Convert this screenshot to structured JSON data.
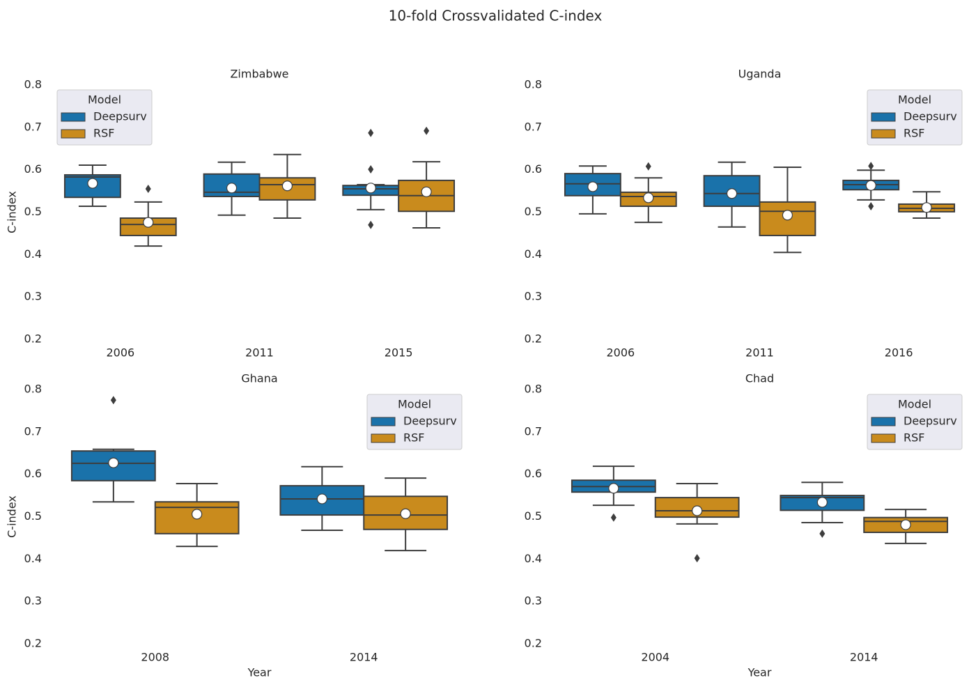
{
  "title": "10-fold Crossvalidated C-index",
  "chart_data": [
    {
      "type": "box",
      "title": "Zimbabwe",
      "ylabel": "C-index",
      "categories": [
        "2006",
        "2011",
        "2015"
      ],
      "ylim": [
        0.2,
        0.8
      ],
      "yticks": [
        0.2,
        0.3,
        0.4,
        0.5,
        0.6,
        0.7,
        0.8
      ],
      "legend": {
        "title": "Model",
        "position": "upper left"
      },
      "series": [
        {
          "name": "Deepsurv",
          "color": "#1a72aa",
          "boxes": [
            {
              "low": 0.514,
              "q1": 0.535,
              "median": 0.583,
              "q3": 0.588,
              "high": 0.611,
              "mean": 0.568,
              "outliers": []
            },
            {
              "low": 0.493,
              "q1": 0.537,
              "median": 0.547,
              "q3": 0.59,
              "high": 0.618,
              "mean": 0.557,
              "outliers": []
            },
            {
              "low": 0.506,
              "q1": 0.54,
              "median": 0.555,
              "q3": 0.563,
              "high": 0.565,
              "mean": 0.557,
              "outliers": [
                0.687,
                0.601,
                0.47
              ]
            }
          ]
        },
        {
          "name": "RSF",
          "color": "#c98b1d",
          "boxes": [
            {
              "low": 0.42,
              "q1": 0.445,
              "median": 0.471,
              "q3": 0.486,
              "high": 0.524,
              "mean": 0.476,
              "outliers": [
                0.555
              ]
            },
            {
              "low": 0.486,
              "q1": 0.529,
              "median": 0.565,
              "q3": 0.581,
              "high": 0.636,
              "mean": 0.562,
              "outliers": []
            },
            {
              "low": 0.463,
              "q1": 0.502,
              "median": 0.539,
              "q3": 0.575,
              "high": 0.619,
              "mean": 0.548,
              "outliers": [
                0.692
              ]
            }
          ]
        }
      ]
    },
    {
      "type": "box",
      "title": "Uganda",
      "categories": [
        "2006",
        "2011",
        "2016"
      ],
      "ylim": [
        0.2,
        0.8
      ],
      "yticks": [
        0.2,
        0.3,
        0.4,
        0.5,
        0.6,
        0.7,
        0.8
      ],
      "legend": {
        "title": "Model",
        "position": "upper right"
      },
      "series": [
        {
          "name": "Deepsurv",
          "color": "#1a72aa",
          "boxes": [
            {
              "low": 0.496,
              "q1": 0.539,
              "median": 0.567,
              "q3": 0.591,
              "high": 0.609,
              "mean": 0.56,
              "outliers": []
            },
            {
              "low": 0.465,
              "q1": 0.514,
              "median": 0.544,
              "q3": 0.586,
              "high": 0.618,
              "mean": 0.544,
              "outliers": []
            },
            {
              "low": 0.529,
              "q1": 0.553,
              "median": 0.565,
              "q3": 0.575,
              "high": 0.599,
              "mean": 0.563,
              "outliers": [
                0.609,
                0.514
              ]
            }
          ]
        },
        {
          "name": "RSF",
          "color": "#c98b1d",
          "boxes": [
            {
              "low": 0.476,
              "q1": 0.514,
              "median": 0.537,
              "q3": 0.547,
              "high": 0.581,
              "mean": 0.534,
              "outliers": [
                0.608
              ]
            },
            {
              "low": 0.405,
              "q1": 0.445,
              "median": 0.502,
              "q3": 0.524,
              "high": 0.606,
              "mean": 0.493,
              "outliers": []
            },
            {
              "low": 0.486,
              "q1": 0.501,
              "median": 0.509,
              "q3": 0.519,
              "high": 0.548,
              "mean": 0.511,
              "outliers": []
            }
          ]
        }
      ]
    },
    {
      "type": "box",
      "title": "Ghana",
      "xlabel": "Year",
      "ylabel": "C-index",
      "categories": [
        "2008",
        "2014"
      ],
      "ylim": [
        0.2,
        0.8
      ],
      "yticks": [
        0.2,
        0.3,
        0.4,
        0.5,
        0.6,
        0.7,
        0.8
      ],
      "legend": {
        "title": "Model",
        "position": "upper right"
      },
      "series": [
        {
          "name": "Deepsurv",
          "color": "#1a72aa",
          "boxes": [
            {
              "low": 0.535,
              "q1": 0.585,
              "median": 0.626,
              "q3": 0.655,
              "high": 0.659,
              "mean": 0.627,
              "outliers": [
                0.775
              ]
            },
            {
              "low": 0.468,
              "q1": 0.504,
              "median": 0.542,
              "q3": 0.573,
              "high": 0.618,
              "mean": 0.542,
              "outliers": []
            }
          ]
        },
        {
          "name": "RSF",
          "color": "#c98b1d",
          "boxes": [
            {
              "low": 0.43,
              "q1": 0.46,
              "median": 0.522,
              "q3": 0.535,
              "high": 0.578,
              "mean": 0.506,
              "outliers": []
            },
            {
              "low": 0.42,
              "q1": 0.47,
              "median": 0.504,
              "q3": 0.548,
              "high": 0.591,
              "mean": 0.507,
              "outliers": []
            }
          ]
        }
      ]
    },
    {
      "type": "box",
      "title": "Chad",
      "xlabel": "Year",
      "categories": [
        "2004",
        "2014"
      ],
      "ylim": [
        0.2,
        0.8
      ],
      "yticks": [
        0.2,
        0.3,
        0.4,
        0.5,
        0.6,
        0.7,
        0.8
      ],
      "legend": {
        "title": "Model",
        "position": "upper right"
      },
      "series": [
        {
          "name": "Deepsurv",
          "color": "#1a72aa",
          "boxes": [
            {
              "low": 0.527,
              "q1": 0.558,
              "median": 0.571,
              "q3": 0.586,
              "high": 0.619,
              "mean": 0.567,
              "outliers": [
                0.498
              ]
            },
            {
              "low": 0.486,
              "q1": 0.515,
              "median": 0.545,
              "q3": 0.55,
              "high": 0.581,
              "mean": 0.534,
              "outliers": [
                0.46
              ]
            }
          ]
        },
        {
          "name": "RSF",
          "color": "#c98b1d",
          "boxes": [
            {
              "low": 0.483,
              "q1": 0.499,
              "median": 0.514,
              "q3": 0.545,
              "high": 0.578,
              "mean": 0.514,
              "outliers": [
                0.402
              ]
            },
            {
              "low": 0.437,
              "q1": 0.463,
              "median": 0.489,
              "q3": 0.498,
              "high": 0.517,
              "mean": 0.481,
              "outliers": []
            }
          ]
        }
      ]
    }
  ]
}
